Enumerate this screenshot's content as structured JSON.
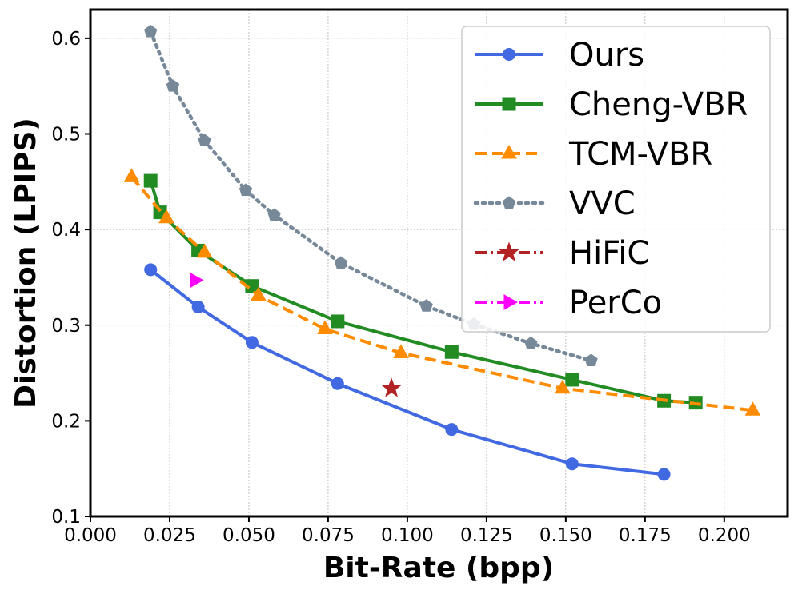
{
  "chart_data": {
    "type": "line",
    "title": "",
    "xlabel": "Bit-Rate (bpp)",
    "ylabel": "Distortion (LPIPS)",
    "xlim": [
      0.0,
      0.22
    ],
    "ylim": [
      0.1,
      0.63
    ],
    "xticks": [
      "0.000",
      "0.025",
      "0.050",
      "0.075",
      "0.100",
      "0.125",
      "0.150",
      "0.175",
      "0.200"
    ],
    "yticks": [
      "0.1",
      "0.2",
      "0.3",
      "0.4",
      "0.5",
      "0.6"
    ],
    "grid": true,
    "legend_position": "top-right",
    "series": [
      {
        "name": "Ours",
        "color": "#4169e1",
        "marker": "circle",
        "line_style": "solid",
        "x": [
          0.019,
          0.034,
          0.051,
          0.078,
          0.114,
          0.152,
          0.181
        ],
        "y": [
          0.358,
          0.319,
          0.282,
          0.239,
          0.191,
          0.155,
          0.144
        ]
      },
      {
        "name": "Cheng-VBR",
        "color": "#228b22",
        "marker": "square",
        "line_style": "solid",
        "x": [
          0.019,
          0.022,
          0.034,
          0.051,
          0.078,
          0.114,
          0.152,
          0.181,
          0.191
        ],
        "y": [
          0.451,
          0.418,
          0.378,
          0.341,
          0.304,
          0.272,
          0.243,
          0.221,
          0.219
        ]
      },
      {
        "name": "TCM-VBR",
        "color": "#ff8c00",
        "marker": "triangle",
        "line_style": "dashed",
        "x": [
          0.013,
          0.024,
          0.036,
          0.053,
          0.074,
          0.098,
          0.149,
          0.209
        ],
        "y": [
          0.455,
          0.412,
          0.376,
          0.331,
          0.296,
          0.271,
          0.234,
          0.211
        ]
      },
      {
        "name": "VVC",
        "color": "#778899",
        "marker": "pentagon",
        "line_style": "dotted",
        "x": [
          0.019,
          0.026,
          0.036,
          0.049,
          0.058,
          0.079,
          0.106,
          0.121,
          0.139,
          0.158
        ],
        "y": [
          0.607,
          0.55,
          0.493,
          0.441,
          0.415,
          0.365,
          0.32,
          0.301,
          0.281,
          0.263
        ]
      },
      {
        "name": "HiFiC",
        "color": "#b22222",
        "marker": "star",
        "line_style": "dashdot",
        "x": [
          0.095
        ],
        "y": [
          0.234
        ]
      },
      {
        "name": "PerCo",
        "color": "#ff00ff",
        "marker": "triangle-right",
        "line_style": "dashdot",
        "x": [
          0.033
        ],
        "y": [
          0.347
        ]
      }
    ]
  }
}
